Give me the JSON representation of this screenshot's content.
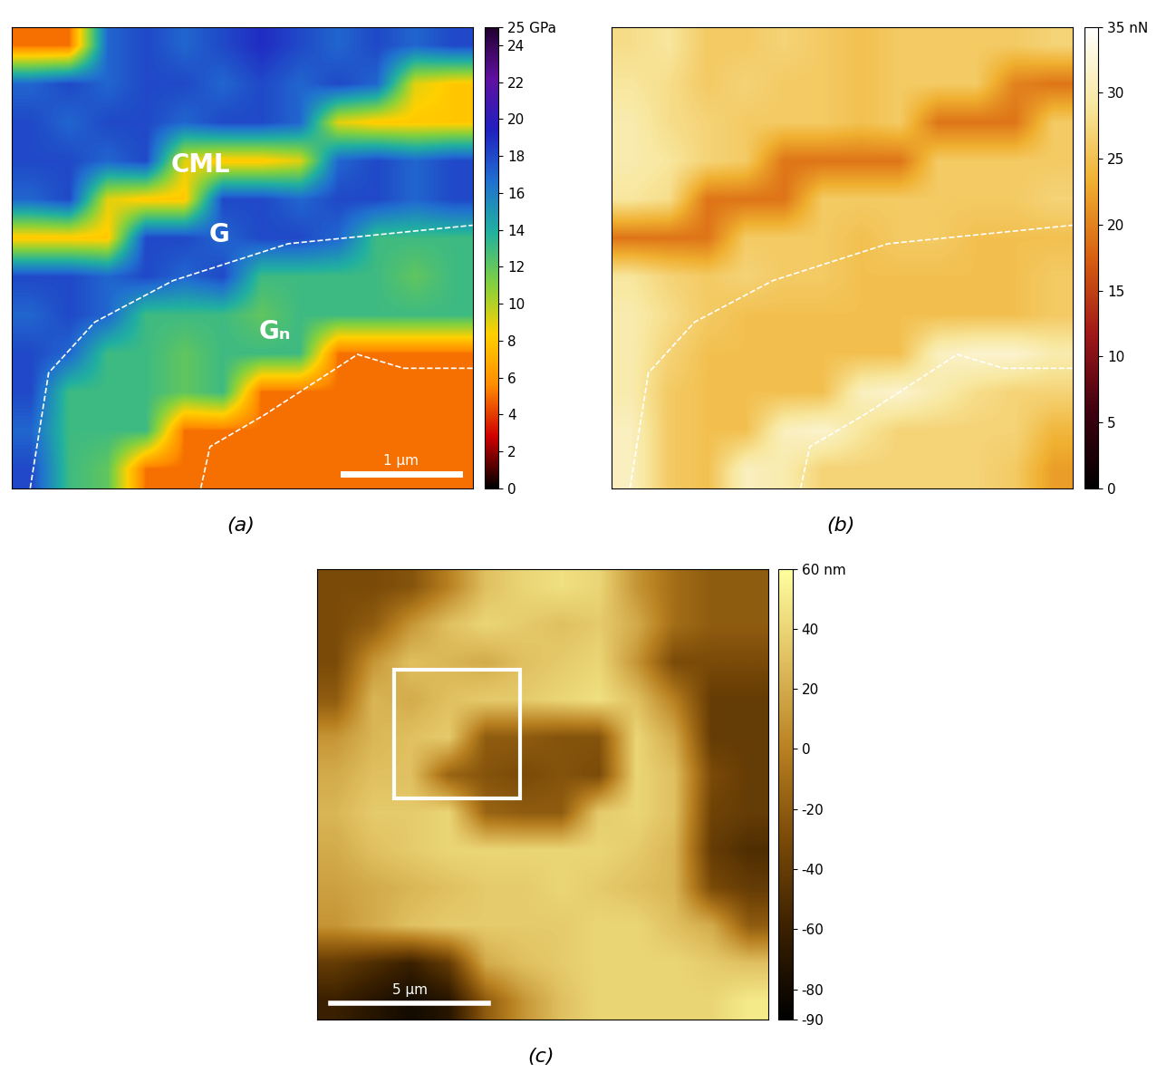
{
  "chart_data": [
    {
      "type": "heatmap",
      "title": "(a)",
      "tick_labels": false,
      "annotations": [
        "CML",
        "G",
        "Gₙ",
        "1 μm"
      ],
      "cells": [
        [
          5,
          5,
          17,
          18,
          17,
          18,
          19,
          18,
          17,
          18,
          17,
          18
        ],
        [
          17,
          18,
          17,
          18,
          18,
          17,
          18,
          17,
          18,
          17,
          9,
          8
        ],
        [
          18,
          17,
          18,
          18,
          17,
          18,
          18,
          17,
          9,
          8,
          8,
          8
        ],
        [
          18,
          18,
          17,
          18,
          9,
          8,
          8,
          9,
          17,
          18,
          17,
          18
        ],
        [
          17,
          18,
          9,
          8,
          8,
          18,
          18,
          17,
          18,
          18,
          17,
          18
        ],
        [
          8,
          8,
          8,
          18,
          18,
          17,
          18,
          18,
          17,
          13,
          13,
          13
        ],
        [
          18,
          18,
          17,
          18,
          17,
          18,
          13,
          13,
          13,
          13,
          12,
          13
        ],
        [
          17,
          18,
          17,
          13,
          13,
          13,
          12,
          13,
          13,
          13,
          13,
          13
        ],
        [
          18,
          17,
          13,
          13,
          12,
          13,
          13,
          13,
          5,
          5,
          5,
          5
        ],
        [
          18,
          13,
          13,
          13,
          12,
          13,
          5,
          5,
          5,
          5,
          5,
          5
        ],
        [
          17,
          13,
          13,
          13,
          5,
          5,
          5,
          5,
          5,
          5,
          5,
          5
        ],
        [
          18,
          13,
          12,
          5,
          5,
          5,
          5,
          5,
          5,
          5,
          5,
          5
        ]
      ],
      "colorbar": {
        "range": [
          0,
          25
        ],
        "ticks": [
          {
            "value": 25,
            "label": "25 GPa"
          },
          24,
          22,
          20,
          18,
          16,
          14,
          12,
          10,
          8,
          6,
          4,
          2,
          0
        ]
      }
    },
    {
      "type": "heatmap",
      "title": "(b)",
      "tick_labels": false,
      "cells": [
        [
          28,
          29,
          26,
          26,
          27,
          26,
          25,
          26,
          26,
          26,
          26,
          27
        ],
        [
          29,
          28,
          26,
          27,
          26,
          26,
          25,
          26,
          26,
          26,
          20,
          19
        ],
        [
          30,
          28,
          27,
          26,
          26,
          26,
          25,
          26,
          19,
          19,
          19,
          26
        ],
        [
          30,
          29,
          27,
          26,
          19,
          19,
          19,
          19,
          26,
          26,
          26,
          26
        ],
        [
          29,
          28,
          19,
          19,
          19,
          26,
          26,
          26,
          26,
          26,
          26,
          27
        ],
        [
          19,
          19,
          19,
          26,
          26,
          26,
          25,
          26,
          26,
          25,
          25,
          25
        ],
        [
          29,
          27,
          26,
          27,
          26,
          26,
          25,
          25,
          25,
          25,
          25,
          26
        ],
        [
          30,
          28,
          26,
          25,
          25,
          25,
          25,
          25,
          25,
          25,
          25,
          26
        ],
        [
          30,
          27,
          25,
          25,
          25,
          25,
          25,
          25,
          31,
          32,
          32,
          30
        ],
        [
          30,
          26,
          25,
          25,
          25,
          25,
          31,
          32,
          30,
          28,
          27,
          27
        ],
        [
          31,
          26,
          25,
          25,
          31,
          32,
          29,
          27,
          27,
          27,
          27,
          24
        ],
        [
          31,
          26,
          25,
          31,
          30,
          27,
          27,
          27,
          27,
          27,
          26,
          22
        ]
      ],
      "colorbar": {
        "range": [
          0,
          35
        ],
        "ticks": [
          {
            "value": 35,
            "label": "35 nN"
          },
          30,
          25,
          20,
          15,
          10,
          5,
          0
        ]
      }
    },
    {
      "type": "heatmap",
      "title": "(c)",
      "tick_labels": false,
      "annotations": [
        "5 μm"
      ],
      "cells": [
        [
          -30,
          -30,
          -25,
          0,
          30,
          40,
          45,
          40,
          10,
          -10,
          -20,
          -20
        ],
        [
          -30,
          -20,
          10,
          30,
          40,
          35,
          30,
          35,
          20,
          -10,
          -20,
          -20
        ],
        [
          -30,
          10,
          30,
          25,
          20,
          30,
          35,
          40,
          10,
          -30,
          -30,
          -30
        ],
        [
          -20,
          25,
          20,
          30,
          35,
          35,
          40,
          45,
          30,
          0,
          -40,
          -40
        ],
        [
          10,
          25,
          30,
          35,
          -20,
          -20,
          -25,
          -25,
          40,
          20,
          -40,
          -40
        ],
        [
          20,
          30,
          30,
          -15,
          -25,
          -30,
          -25,
          -30,
          40,
          30,
          -30,
          -40
        ],
        [
          25,
          35,
          35,
          40,
          -15,
          -20,
          -20,
          35,
          40,
          30,
          -35,
          -40
        ],
        [
          20,
          30,
          35,
          40,
          40,
          40,
          40,
          40,
          35,
          25,
          -40,
          -50
        ],
        [
          15,
          20,
          25,
          30,
          35,
          35,
          40,
          35,
          30,
          25,
          -30,
          -40
        ],
        [
          10,
          20,
          30,
          35,
          35,
          35,
          35,
          40,
          40,
          30,
          20,
          -20
        ],
        [
          -40,
          -50,
          -60,
          -40,
          20,
          30,
          35,
          40,
          40,
          40,
          35,
          30
        ],
        [
          -60,
          -70,
          -80,
          -70,
          -20,
          10,
          30,
          40,
          40,
          40,
          40,
          50
        ]
      ],
      "colorbar": {
        "range": [
          -90,
          60
        ],
        "ticks": [
          {
            "value": 60,
            "label": "60 nm"
          },
          40,
          20,
          0,
          -20,
          -40,
          -60,
          -80,
          -90
        ]
      }
    }
  ]
}
